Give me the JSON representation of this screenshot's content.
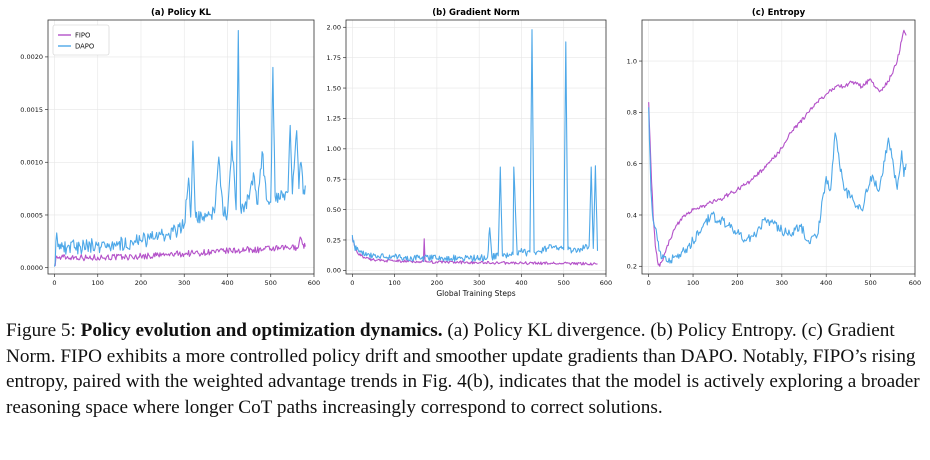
{
  "colors": {
    "fipo": "#b452c9",
    "dapo": "#4ea8e8",
    "grid": "#e6e6e6",
    "frame": "#333333"
  },
  "legend": {
    "entries": [
      "FIPO",
      "DAPO"
    ],
    "placement": "top-left"
  },
  "shared_xlabel": "Global Training Steps",
  "caption": {
    "label": "Figure 5:",
    "title": "Policy evolution and optimization dynamics.",
    "body": "(a) Policy KL divergence. (b) Policy Entropy. (c) Gradient Norm. FIPO exhibits a more controlled policy drift and smoother update gradients than DAPO. Notably, FIPO’s rising entropy, paired with the weighted advantage trends in Fig. 4(b), indicates that the model is actively exploring a broader reasoning space where longer CoT paths increasingly correspond to correct solutions."
  },
  "chart_data": [
    {
      "type": "line",
      "title": "(a) Policy KL",
      "xlabel": "",
      "ylabel": "",
      "xlim": [
        -15,
        600
      ],
      "ylim": [
        -6e-05,
        0.00235
      ],
      "xticks": [
        "0",
        "100",
        "200",
        "300",
        "400",
        "500",
        "600"
      ],
      "xtick_values": [
        0,
        100,
        200,
        300,
        400,
        500,
        600
      ],
      "yticks": [
        "0.0000",
        "0.0005",
        "0.0010",
        "0.0015",
        "0.0020"
      ],
      "ytick_values": [
        0,
        0.0005,
        0.001,
        0.0015,
        0.002
      ],
      "grid": true,
      "series": [
        {
          "name": "FIPO",
          "x": [
            0,
            5,
            10,
            20,
            40,
            60,
            80,
            100,
            120,
            140,
            160,
            180,
            200,
            220,
            240,
            260,
            280,
            300,
            320,
            340,
            360,
            380,
            400,
            420,
            440,
            460,
            480,
            500,
            520,
            540,
            560,
            570,
            575,
            580
          ],
          "y": [
            2e-05,
            0.00011,
            9e-05,
            0.0001,
            0.0001,
            0.0001,
            9e-05,
            0.0001,
            0.0001,
            0.0001,
            0.0001,
            0.0001,
            0.00011,
            0.00011,
            0.00012,
            0.00012,
            0.00013,
            0.00013,
            0.00014,
            0.00014,
            0.00015,
            0.00015,
            0.00016,
            0.00016,
            0.00017,
            0.00017,
            0.00017,
            0.00018,
            0.00018,
            0.00019,
            0.00019,
            0.00028,
            0.00022,
            0.0002
          ]
        },
        {
          "name": "DAPO",
          "x": [
            0,
            5,
            8,
            15,
            30,
            60,
            100,
            140,
            180,
            200,
            220,
            240,
            260,
            280,
            300,
            310,
            315,
            320,
            325,
            330,
            340,
            350,
            360,
            370,
            380,
            390,
            400,
            410,
            420,
            425,
            430,
            440,
            450,
            460,
            470,
            480,
            490,
            500,
            505,
            510,
            520,
            530,
            540,
            545,
            550,
            560,
            565,
            570,
            575,
            580
          ],
          "y": [
            1e-05,
            0.00033,
            0.0002,
            0.00018,
            0.0002,
            0.0002,
            0.00021,
            0.00022,
            0.00024,
            0.00026,
            0.00027,
            0.00029,
            0.00031,
            0.00035,
            0.0004,
            0.00085,
            0.00048,
            0.0012,
            0.00055,
            0.00045,
            0.0005,
            0.00048,
            0.0005,
            0.00052,
            0.00105,
            0.0005,
            0.00052,
            0.0012,
            0.00055,
            0.00225,
            0.00058,
            0.0006,
            0.00065,
            0.0009,
            0.0006,
            0.0011,
            0.00065,
            0.00062,
            0.0019,
            0.00068,
            0.00065,
            0.0007,
            0.00072,
            0.00135,
            0.0007,
            0.0013,
            0.00075,
            0.001,
            0.0007,
            0.00078
          ]
        }
      ]
    },
    {
      "type": "line",
      "title": "(b) Gradient Norm",
      "xlabel": "Global Training Steps",
      "ylabel": "",
      "xlim": [
        -15,
        600
      ],
      "ylim": [
        -0.03,
        2.06
      ],
      "xticks": [
        "0",
        "100",
        "200",
        "300",
        "400",
        "500",
        "600"
      ],
      "xtick_values": [
        0,
        100,
        200,
        300,
        400,
        500,
        600
      ],
      "yticks": [
        "0.00",
        "0.25",
        "0.50",
        "0.75",
        "1.00",
        "1.25",
        "1.50",
        "1.75",
        "2.00"
      ],
      "ytick_values": [
        0,
        0.25,
        0.5,
        0.75,
        1.0,
        1.25,
        1.5,
        1.75,
        2.0
      ],
      "grid": true,
      "series": [
        {
          "name": "FIPO",
          "x": [
            0,
            5,
            10,
            20,
            40,
            60,
            80,
            100,
            120,
            140,
            160,
            168,
            170,
            172,
            180,
            200,
            250,
            300,
            350,
            400,
            450,
            500,
            550,
            580
          ],
          "y": [
            0.27,
            0.2,
            0.16,
            0.12,
            0.09,
            0.085,
            0.08,
            0.078,
            0.075,
            0.074,
            0.072,
            0.072,
            0.26,
            0.072,
            0.07,
            0.068,
            0.066,
            0.064,
            0.062,
            0.06,
            0.058,
            0.057,
            0.055,
            0.055
          ]
        },
        {
          "name": "DAPO",
          "x": [
            0,
            5,
            10,
            20,
            40,
            60,
            80,
            100,
            140,
            180,
            220,
            260,
            300,
            320,
            325,
            330,
            345,
            350,
            355,
            370,
            380,
            382,
            390,
            400,
            410,
            420,
            425,
            430,
            440,
            460,
            480,
            500,
            505,
            510,
            520,
            540,
            560,
            565,
            570,
            575,
            580
          ],
          "y": [
            0.29,
            0.2,
            0.17,
            0.15,
            0.13,
            0.12,
            0.11,
            0.11,
            0.1,
            0.1,
            0.1,
            0.1,
            0.1,
            0.11,
            0.35,
            0.11,
            0.12,
            0.85,
            0.12,
            0.12,
            0.13,
            0.85,
            0.13,
            0.18,
            0.14,
            0.15,
            1.98,
            0.15,
            0.16,
            0.18,
            0.2,
            0.17,
            1.88,
            0.17,
            0.16,
            0.18,
            0.2,
            0.85,
            0.18,
            0.86,
            0.16
          ]
        }
      ]
    },
    {
      "type": "line",
      "title": "(c) Entropy",
      "xlabel": "",
      "ylabel": "",
      "xlim": [
        -15,
        600
      ],
      "ylim": [
        0.17,
        1.16
      ],
      "xticks": [
        "0",
        "100",
        "200",
        "300",
        "400",
        "500",
        "600"
      ],
      "xtick_values": [
        0,
        100,
        200,
        300,
        400,
        500,
        600
      ],
      "yticks": [
        "0.2",
        "0.4",
        "0.6",
        "0.8",
        "1.0"
      ],
      "ytick_values": [
        0.2,
        0.4,
        0.6,
        0.8,
        1.0
      ],
      "grid": true,
      "series": [
        {
          "name": "FIPO",
          "x": [
            0,
            5,
            10,
            15,
            20,
            25,
            30,
            40,
            60,
            80,
            100,
            120,
            140,
            160,
            180,
            200,
            220,
            240,
            260,
            280,
            300,
            320,
            340,
            360,
            380,
            400,
            420,
            440,
            460,
            480,
            500,
            510,
            520,
            540,
            560,
            570,
            575,
            580
          ],
          "y": [
            0.84,
            0.6,
            0.4,
            0.28,
            0.22,
            0.2,
            0.22,
            0.27,
            0.35,
            0.4,
            0.42,
            0.43,
            0.45,
            0.46,
            0.48,
            0.5,
            0.52,
            0.55,
            0.58,
            0.62,
            0.66,
            0.72,
            0.76,
            0.8,
            0.84,
            0.87,
            0.9,
            0.9,
            0.92,
            0.9,
            0.93,
            0.9,
            0.88,
            0.92,
            1.0,
            1.08,
            1.12,
            1.1
          ]
        },
        {
          "name": "DAPO",
          "x": [
            0,
            5,
            10,
            15,
            20,
            25,
            30,
            40,
            60,
            80,
            100,
            120,
            140,
            160,
            180,
            200,
            220,
            240,
            260,
            280,
            300,
            320,
            340,
            360,
            380,
            400,
            410,
            420,
            430,
            440,
            460,
            480,
            500,
            520,
            540,
            560,
            570,
            575,
            580
          ],
          "y": [
            0.82,
            0.5,
            0.38,
            0.35,
            0.3,
            0.26,
            0.23,
            0.22,
            0.24,
            0.26,
            0.3,
            0.35,
            0.4,
            0.38,
            0.36,
            0.33,
            0.3,
            0.32,
            0.38,
            0.37,
            0.34,
            0.32,
            0.36,
            0.3,
            0.32,
            0.55,
            0.5,
            0.72,
            0.6,
            0.5,
            0.46,
            0.42,
            0.55,
            0.5,
            0.7,
            0.5,
            0.65,
            0.55,
            0.6
          ]
        }
      ]
    }
  ]
}
